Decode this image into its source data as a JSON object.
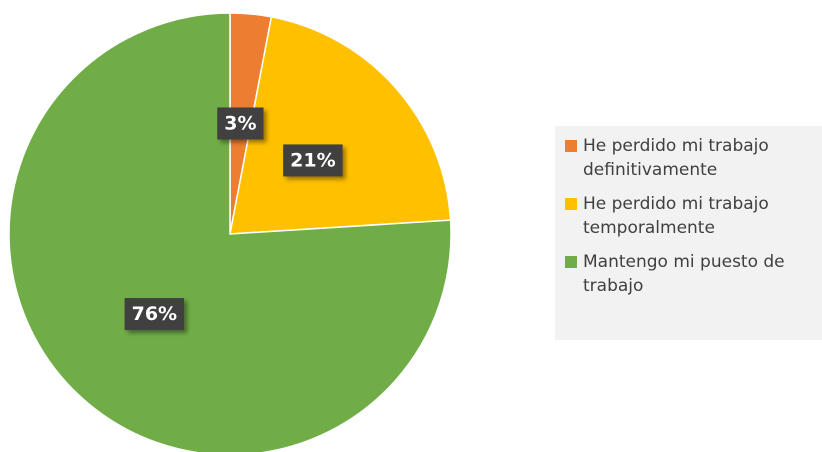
{
  "chart_data": {
    "type": "pie",
    "categories": [
      "He perdido mi trabajo definitivamente",
      "He perdido mi trabajo temporalmente",
      "Mantengo mi puesto de trabajo"
    ],
    "values": [
      3,
      21,
      76
    ],
    "value_labels": [
      "3%",
      "21%",
      "76%"
    ],
    "colors": [
      "#ed7d31",
      "#ffc000",
      "#70ad47"
    ],
    "legend": "right"
  }
}
